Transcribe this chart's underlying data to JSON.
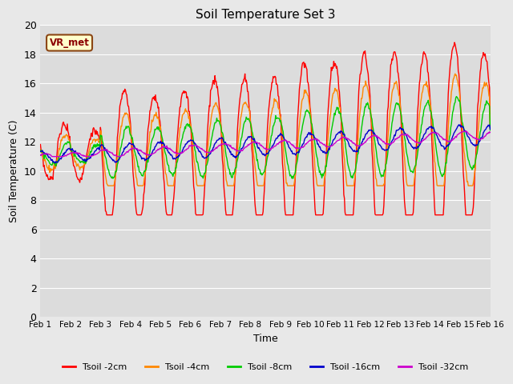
{
  "title": "Soil Temperature Set 3",
  "xlabel": "Time",
  "ylabel": "Soil Temperature (C)",
  "ylim": [
    0,
    20
  ],
  "yticks": [
    0,
    2,
    4,
    6,
    8,
    10,
    12,
    14,
    16,
    18,
    20
  ],
  "x_labels": [
    "Feb 1",
    "Feb 2",
    "Feb 3",
    "Feb 4",
    "Feb 5",
    "Feb 6",
    "Feb 7",
    "Feb 8",
    "Feb 9",
    "Feb 10",
    "Feb 11",
    "Feb 12",
    "Feb 13",
    "Feb 14",
    "Feb 15",
    "Feb 16"
  ],
  "fig_bg": "#e8e8e8",
  "plot_bg": "#dcdcdc",
  "grid_color": "#ffffff",
  "legend_label": "VR_met",
  "colors": {
    "T2": "#ff0000",
    "T4": "#ff8800",
    "T8": "#00cc00",
    "T16": "#0000cc",
    "T32": "#cc00cc"
  },
  "figsize": [
    6.4,
    4.8
  ],
  "dpi": 100
}
